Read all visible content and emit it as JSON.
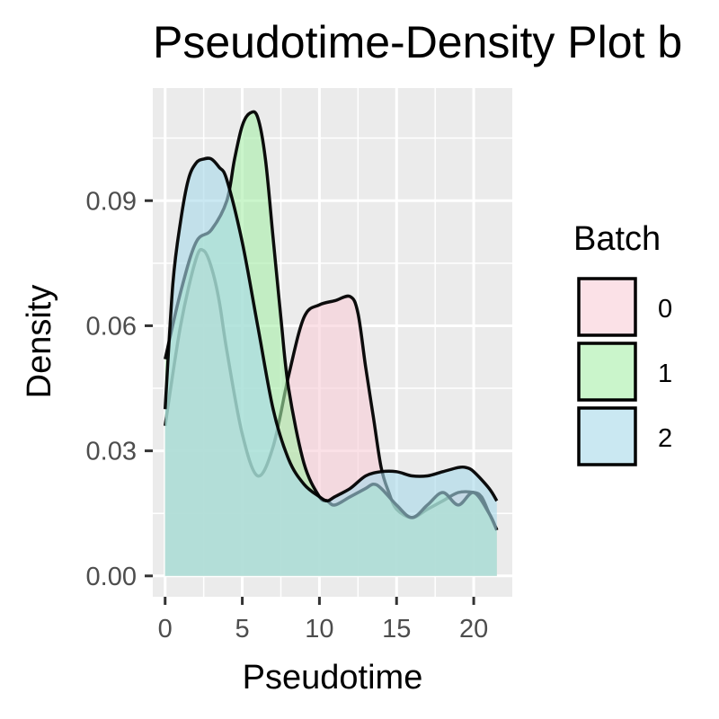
{
  "chart_data": {
    "type": "area",
    "title": "Pseudotime-Density Plot b",
    "xlabel": "Pseudotime",
    "ylabel": "Density",
    "xlim": [
      -0.8,
      22.5
    ],
    "ylim": [
      -0.005,
      0.117
    ],
    "x_ticks": [
      0,
      5,
      10,
      15,
      20
    ],
    "x_tick_labels": [
      "0",
      "5",
      "10",
      "15",
      "20"
    ],
    "y_ticks": [
      0.0,
      0.03,
      0.06,
      0.09
    ],
    "y_tick_labels": [
      "0.00",
      "0.03",
      "0.06",
      "0.09"
    ],
    "grid": true,
    "legend": {
      "title": "Batch",
      "position": "right"
    },
    "series": [
      {
        "name": "0",
        "color": "#F8766D",
        "fill": "#f9cdd7",
        "x": [
          0,
          1,
          2,
          2.5,
          3,
          3.5,
          4,
          5,
          6,
          7,
          8,
          9,
          10,
          11,
          12,
          12.5,
          13,
          13.5,
          14,
          14.5,
          15,
          16,
          17,
          18,
          19,
          20,
          20.5,
          21,
          21.5
        ],
        "y": [
          0.036,
          0.06,
          0.076,
          0.078,
          0.074,
          0.066,
          0.054,
          0.034,
          0.024,
          0.031,
          0.048,
          0.062,
          0.065,
          0.066,
          0.067,
          0.063,
          0.05,
          0.038,
          0.026,
          0.02,
          0.016,
          0.014,
          0.016,
          0.018,
          0.02,
          0.02,
          0.019,
          0.015,
          0.011
        ]
      },
      {
        "name": "1",
        "color": "#00BA38",
        "fill": "#a6eea9",
        "x": [
          0,
          1,
          2,
          3,
          4,
          4.5,
          5,
          5.5,
          6,
          6.5,
          7,
          7.5,
          8,
          9,
          10,
          10.5,
          11,
          12,
          13,
          13.5,
          14,
          15,
          16,
          17,
          18,
          19,
          20,
          21,
          21.5
        ],
        "y": [
          0.052,
          0.068,
          0.08,
          0.083,
          0.09,
          0.1,
          0.108,
          0.111,
          0.11,
          0.1,
          0.081,
          0.062,
          0.045,
          0.027,
          0.019,
          0.018,
          0.017,
          0.019,
          0.021,
          0.022,
          0.021,
          0.017,
          0.014,
          0.017,
          0.02,
          0.017,
          0.02,
          0.015,
          0.011
        ]
      },
      {
        "name": "2",
        "color": "#619CFF",
        "fill": "#a7d8ea",
        "x": [
          0,
          0.5,
          1,
          1.5,
          2,
          2.5,
          3,
          3.5,
          4,
          5,
          6,
          7,
          8,
          9,
          10,
          10.5,
          11,
          12,
          13,
          14,
          15,
          16,
          17,
          18,
          19,
          19.5,
          20,
          21,
          21.5
        ],
        "y": [
          0.04,
          0.07,
          0.085,
          0.095,
          0.099,
          0.1,
          0.1,
          0.098,
          0.095,
          0.08,
          0.06,
          0.04,
          0.028,
          0.022,
          0.019,
          0.018,
          0.019,
          0.021,
          0.024,
          0.025,
          0.025,
          0.024,
          0.024,
          0.025,
          0.026,
          0.026,
          0.025,
          0.021,
          0.018
        ]
      }
    ]
  }
}
